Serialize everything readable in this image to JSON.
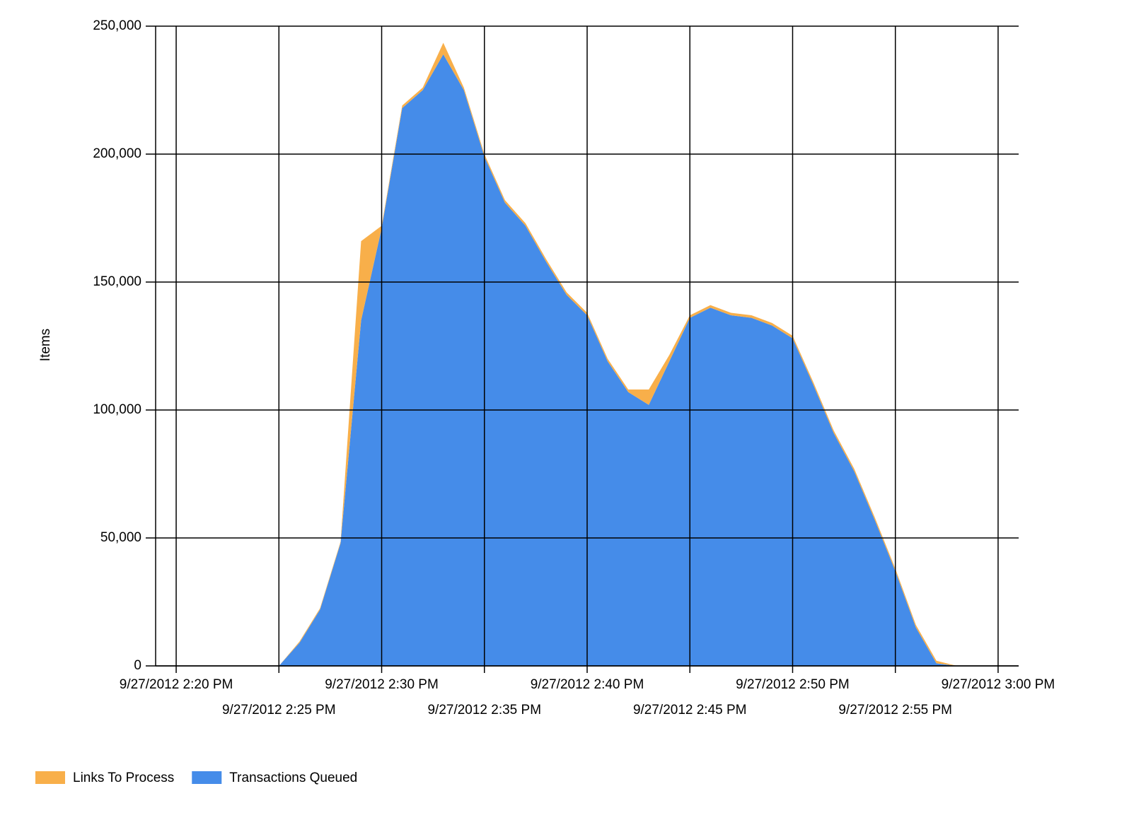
{
  "chart_data": {
    "type": "stacked-area",
    "y_label": "Items",
    "x": [
      "9/27/2012 2:25 PM",
      "9/27/2012 2:26 PM",
      "9/27/2012 2:27 PM",
      "9/27/2012 2:28 PM",
      "9/27/2012 2:29 PM",
      "9/27/2012 2:30 PM",
      "9/27/2012 2:31 PM",
      "9/27/2012 2:32 PM",
      "9/27/2012 2:33 PM",
      "9/27/2012 2:34 PM",
      "9/27/2012 2:35 PM",
      "9/27/2012 2:36 PM",
      "9/27/2012 2:37 PM",
      "9/27/2012 2:38 PM",
      "9/27/2012 2:39 PM",
      "9/27/2012 2:40 PM",
      "9/27/2012 2:41 PM",
      "9/27/2012 2:42 PM",
      "9/27/2012 2:43 PM",
      "9/27/2012 2:44 PM",
      "9/27/2012 2:45 PM",
      "9/27/2012 2:46 PM",
      "9/27/2012 2:47 PM",
      "9/27/2012 2:48 PM",
      "9/27/2012 2:49 PM",
      "9/27/2012 2:50 PM",
      "9/27/2012 2:51 PM",
      "9/27/2012 2:52 PM",
      "9/27/2012 2:53 PM",
      "9/27/2012 2:54 PM",
      "9/27/2012 2:55 PM",
      "9/27/2012 2:56 PM",
      "9/27/2012 2:57 PM",
      "9/27/2012 2:58 PM"
    ],
    "series": [
      {
        "name": "Links To Process",
        "color": "#f8af4a",
        "values": [
          0,
          500,
          500,
          500,
          31000,
          1000,
          1000,
          1000,
          4500,
          1000,
          1000,
          1000,
          1000,
          1000,
          1000,
          1000,
          1000,
          1000,
          6000,
          2500,
          1000,
          1000,
          1000,
          1000,
          1000,
          1000,
          1000,
          1000,
          1000,
          1000,
          1000,
          1000,
          1000,
          0
        ]
      },
      {
        "name": "Transactions Queued",
        "color": "#458ce9",
        "values": [
          0,
          9000,
          22000,
          48000,
          135000,
          171000,
          218000,
          225000,
          239000,
          225000,
          199000,
          181000,
          172000,
          158000,
          145000,
          137000,
          119000,
          107000,
          102000,
          119000,
          136000,
          140000,
          137000,
          136000,
          133000,
          128000,
          110000,
          91000,
          76000,
          57000,
          37000,
          15000,
          1000,
          0
        ]
      }
    ],
    "xlim": [
      "9/27/2012 2:19 PM",
      "9/27/2012 3:01 PM"
    ],
    "xticks": [
      "9/27/2012 2:20 PM",
      "9/27/2012 2:25 PM",
      "9/27/2012 2:30 PM",
      "9/27/2012 2:35 PM",
      "9/27/2012 2:40 PM",
      "9/27/2012 2:45 PM",
      "9/27/2012 2:50 PM",
      "9/27/2012 2:55 PM",
      "9/27/2012 3:00 PM"
    ],
    "ylim": [
      0,
      250000
    ],
    "yticks": [
      0,
      {
        "value": 50000,
        "label": "50,000"
      },
      {
        "value": 100000,
        "label": "100,000"
      },
      {
        "value": 150000,
        "label": "150,000"
      },
      {
        "value": 200000,
        "label": "200,000"
      },
      {
        "value": 250000,
        "label": "250,000"
      }
    ],
    "grid": true,
    "legend": "bottom-left"
  }
}
